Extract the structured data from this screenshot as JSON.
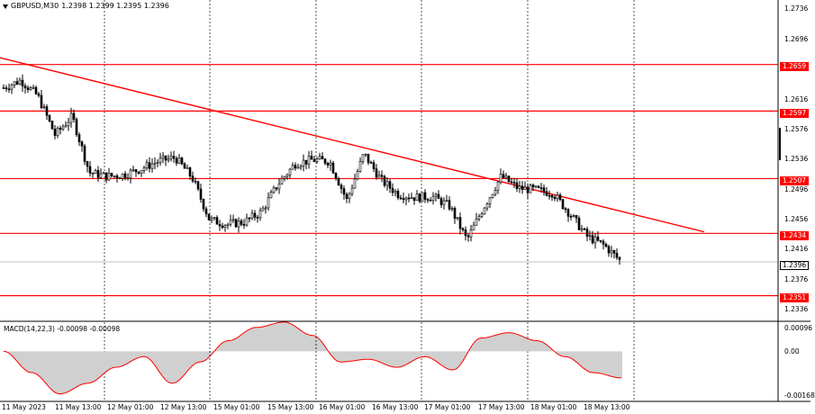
{
  "header": {
    "symbol": "GBPUSD,M30",
    "ohlc": "1.2398 1.2399 1.2395 1.2396"
  },
  "price_axis": {
    "labels": [
      "1.2736",
      "1.2696",
      "1.2616",
      "1.2576",
      "1.2536",
      "1.2496",
      "1.2456",
      "1.2416",
      "1.2376",
      "1.2336"
    ],
    "current_price": "1.2396"
  },
  "levels": [
    {
      "label": "1.2659",
      "price": 1.2659
    },
    {
      "label": "1.2597",
      "price": 1.2597
    },
    {
      "label": "1.2507",
      "price": 1.2507
    },
    {
      "label": "1.2434",
      "price": 1.2434
    },
    {
      "label": "1.2351",
      "price": 1.2351
    }
  ],
  "macd": {
    "label": "MACD(14,22,3) -0.00098 -0.00098",
    "axis_labels": [
      "0.00096",
      "0.00",
      "-0.00168"
    ]
  },
  "time_axis": {
    "labels": [
      "11 May 2023",
      "11 May 13:00",
      "12 May 01:00",
      "12 May 13:00",
      "15 May 01:00",
      "15 May 13:00",
      "16 May 01:00",
      "16 May 13:00",
      "17 May 01:00",
      "17 May 13:00",
      "18 May 01:00",
      "18 May 13:00"
    ]
  },
  "colors": {
    "level_line": "#ff0000",
    "trendline": "#ff0000",
    "candle": "#000000",
    "macd_hist": "#a0a0a0",
    "macd_signal": "#ff0000",
    "grid": "#555555"
  },
  "chart_data": {
    "type": "candlestick",
    "symbol": "GBPUSD",
    "timeframe": "M30",
    "x": [
      "11 May 2023",
      "11 May 13:00",
      "12 May 01:00",
      "12 May 13:00",
      "15 May 01:00",
      "15 May 13:00",
      "16 May 01:00",
      "16 May 13:00",
      "17 May 01:00",
      "17 May 13:00",
      "18 May 01:00",
      "18 May 13:00"
    ],
    "close_path": [
      1.2628,
      1.2638,
      1.2617,
      1.2565,
      1.259,
      1.2515,
      1.251,
      1.2512,
      1.252,
      1.253,
      1.2535,
      1.2508,
      1.2452,
      1.2446,
      1.2449,
      1.2462,
      1.25,
      1.2527,
      1.2532,
      1.253,
      1.2478,
      1.254,
      1.2505,
      1.2486,
      1.2482,
      1.2483,
      1.247,
      1.2425,
      1.247,
      1.251,
      1.2494,
      1.2492,
      1.2488,
      1.246,
      1.243,
      1.2418,
      1.2396
    ],
    "ylim": [
      1.2318,
      1.2745
    ],
    "last_price": 1.2396,
    "horizontal_levels": [
      1.2659,
      1.2597,
      1.2507,
      1.2434,
      1.2351
    ],
    "trendline": {
      "from": [
        0,
        1.2668
      ],
      "to": [
        34,
        1.2436
      ]
    },
    "macd": {
      "params": "14,22,3",
      "value": -0.00098,
      "signal": -0.00098,
      "ylim": [
        -0.00168,
        0.00096
      ],
      "hist_path": [
        0.0,
        -0.0008,
        -0.0016,
        -0.0012,
        -0.0006,
        -0.0002,
        -0.0012,
        -0.0004,
        0.0004,
        0.0009,
        0.0011,
        0.0006,
        -0.0004,
        -0.0003,
        -0.0006,
        -0.0002,
        -0.0007,
        0.0005,
        0.0007,
        0.0004,
        -0.0002,
        -0.0008,
        -0.001
      ]
    }
  }
}
